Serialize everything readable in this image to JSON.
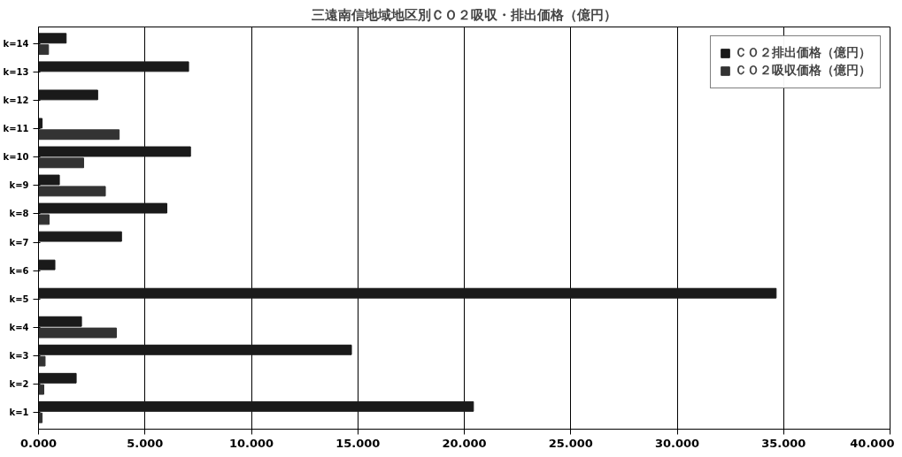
{
  "chart_data": {
    "type": "bar",
    "orientation": "horizontal",
    "title": "三遠南信地域地区別ＣＯ２吸収・排出価格（億円）",
    "categories": [
      "k=14",
      "k=13",
      "k=12",
      "k=11",
      "k=10",
      "k=9",
      "k=8",
      "k=7",
      "k=6",
      "k=5",
      "k=4",
      "k=3",
      "k=2",
      "k=1"
    ],
    "series": [
      {
        "name": "ＣＯ２排出価格（億円）",
        "color": "#1a1a1a",
        "values": [
          1.3,
          7.05,
          2.78,
          0.17,
          7.14,
          0.98,
          6.03,
          3.9,
          0.77,
          34.65,
          2.02,
          14.7,
          1.77,
          20.43
        ]
      },
      {
        "name": "ＣＯ２吸収価格（億円）",
        "color": "#333333",
        "values": [
          0.47,
          0,
          0,
          3.79,
          2.12,
          3.14,
          0.5,
          0,
          0,
          0,
          3.66,
          0.31,
          0.25,
          0.17
        ]
      }
    ],
    "xlim": [
      0,
      40
    ],
    "xticks": [
      {
        "value": 0,
        "label": "0.000"
      },
      {
        "value": 5,
        "label": "5.000"
      },
      {
        "value": 10,
        "label": "10.000"
      },
      {
        "value": 15,
        "label": "15.000"
      },
      {
        "value": 20,
        "label": "20.000"
      },
      {
        "value": 25,
        "label": "25.000"
      },
      {
        "value": 30,
        "label": "30.000"
      },
      {
        "value": 35,
        "label": "35.000"
      },
      {
        "value": 40,
        "label": "40.000"
      }
    ],
    "grid": "x",
    "legend": "top right"
  }
}
